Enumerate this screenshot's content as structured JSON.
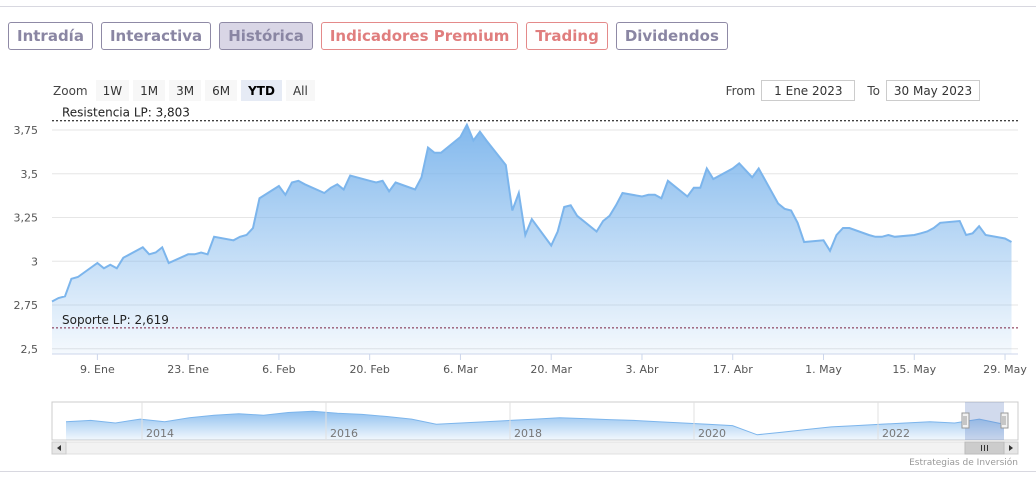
{
  "tabs": [
    {
      "label": "Intradía",
      "active": false,
      "premium": false
    },
    {
      "label": "Interactiva",
      "active": false,
      "premium": false
    },
    {
      "label": "Histórica",
      "active": true,
      "premium": false
    },
    {
      "label": "Indicadores Premium",
      "active": false,
      "premium": true
    },
    {
      "label": "Trading",
      "active": false,
      "premium": true
    },
    {
      "label": "Dividendos",
      "active": false,
      "premium": false
    }
  ],
  "zoom": {
    "label": "Zoom",
    "buttons": [
      "1W",
      "1M",
      "3M",
      "6M",
      "YTD",
      "All"
    ],
    "selected": "YTD"
  },
  "range": {
    "from_label": "From",
    "from_value": "1 Ene 2023",
    "to_label": "To",
    "to_value": "30 May 2023"
  },
  "chart_data": {
    "type": "area",
    "x_start": "2023-01-02",
    "x_end": "2023-05-31",
    "x_ticks": [
      {
        "date": "2023-01-09",
        "label": "9. Ene"
      },
      {
        "date": "2023-01-23",
        "label": "23. Ene"
      },
      {
        "date": "2023-02-06",
        "label": "6. Feb"
      },
      {
        "date": "2023-02-20",
        "label": "20. Feb"
      },
      {
        "date": "2023-03-06",
        "label": "6. Mar"
      },
      {
        "date": "2023-03-20",
        "label": "20. Mar"
      },
      {
        "date": "2023-04-03",
        "label": "3. Abr"
      },
      {
        "date": "2023-04-17",
        "label": "17. Abr"
      },
      {
        "date": "2023-05-01",
        "label": "1. May"
      },
      {
        "date": "2023-05-15",
        "label": "15. May"
      },
      {
        "date": "2023-05-29",
        "label": "29. May"
      }
    ],
    "y_ticks": [
      {
        "value": 2.5,
        "label": "2,5"
      },
      {
        "value": 2.75,
        "label": "2,75"
      },
      {
        "value": 3,
        "label": "3"
      },
      {
        "value": 3.25,
        "label": "3,25"
      },
      {
        "value": 3.5,
        "label": "3,5"
      },
      {
        "value": 3.75,
        "label": "3,75"
      }
    ],
    "ylim": [
      2.47,
      3.83
    ],
    "grid": true,
    "line_color": "#7cb5ec",
    "plot_lines": [
      {
        "value": 3.803,
        "label": "Resistencia LP: 3,803",
        "color": "#000000"
      },
      {
        "value": 2.619,
        "label": "Soporte LP: 2,619",
        "color": "#7a2040"
      }
    ],
    "series": [
      {
        "points": [
          [
            "2023-01-02",
            2.77
          ],
          [
            "2023-01-03",
            2.79
          ],
          [
            "2023-01-04",
            2.8
          ],
          [
            "2023-01-05",
            2.9
          ],
          [
            "2023-01-06",
            2.91
          ],
          [
            "2023-01-09",
            2.99
          ],
          [
            "2023-01-10",
            2.96
          ],
          [
            "2023-01-11",
            2.98
          ],
          [
            "2023-01-12",
            2.96
          ],
          [
            "2023-01-13",
            3.02
          ],
          [
            "2023-01-16",
            3.08
          ],
          [
            "2023-01-17",
            3.04
          ],
          [
            "2023-01-18",
            3.05
          ],
          [
            "2023-01-19",
            3.08
          ],
          [
            "2023-01-20",
            2.99
          ],
          [
            "2023-01-23",
            3.04
          ],
          [
            "2023-01-24",
            3.04
          ],
          [
            "2023-01-25",
            3.05
          ],
          [
            "2023-01-26",
            3.04
          ],
          [
            "2023-01-27",
            3.14
          ],
          [
            "2023-01-30",
            3.12
          ],
          [
            "2023-01-31",
            3.14
          ],
          [
            "2023-02-01",
            3.15
          ],
          [
            "2023-02-02",
            3.19
          ],
          [
            "2023-02-03",
            3.36
          ],
          [
            "2023-02-06",
            3.43
          ],
          [
            "2023-02-07",
            3.38
          ],
          [
            "2023-02-08",
            3.45
          ],
          [
            "2023-02-09",
            3.46
          ],
          [
            "2023-02-10",
            3.44
          ],
          [
            "2023-02-13",
            3.39
          ],
          [
            "2023-02-14",
            3.42
          ],
          [
            "2023-02-15",
            3.44
          ],
          [
            "2023-02-16",
            3.41
          ],
          [
            "2023-02-17",
            3.49
          ],
          [
            "2023-02-20",
            3.46
          ],
          [
            "2023-02-21",
            3.45
          ],
          [
            "2023-02-22",
            3.46
          ],
          [
            "2023-02-23",
            3.4
          ],
          [
            "2023-02-24",
            3.45
          ],
          [
            "2023-02-27",
            3.41
          ],
          [
            "2023-02-28",
            3.48
          ],
          [
            "2023-03-01",
            3.65
          ],
          [
            "2023-03-02",
            3.62
          ],
          [
            "2023-03-03",
            3.62
          ],
          [
            "2023-03-06",
            3.71
          ],
          [
            "2023-03-07",
            3.78
          ],
          [
            "2023-03-08",
            3.69
          ],
          [
            "2023-03-09",
            3.74
          ],
          [
            "2023-03-10",
            3.69
          ],
          [
            "2023-03-13",
            3.55
          ],
          [
            "2023-03-14",
            3.29
          ],
          [
            "2023-03-15",
            3.39
          ],
          [
            "2023-03-16",
            3.15
          ],
          [
            "2023-03-17",
            3.24
          ],
          [
            "2023-03-20",
            3.09
          ],
          [
            "2023-03-21",
            3.17
          ],
          [
            "2023-03-22",
            3.31
          ],
          [
            "2023-03-23",
            3.32
          ],
          [
            "2023-03-24",
            3.26
          ],
          [
            "2023-03-27",
            3.17
          ],
          [
            "2023-03-28",
            3.23
          ],
          [
            "2023-03-29",
            3.26
          ],
          [
            "2023-03-30",
            3.32
          ],
          [
            "2023-03-31",
            3.39
          ],
          [
            "2023-04-03",
            3.37
          ],
          [
            "2023-04-04",
            3.38
          ],
          [
            "2023-04-05",
            3.38
          ],
          [
            "2023-04-06",
            3.36
          ],
          [
            "2023-04-07",
            3.46
          ],
          [
            "2023-04-10",
            3.37
          ],
          [
            "2023-04-11",
            3.42
          ],
          [
            "2023-04-12",
            3.42
          ],
          [
            "2023-04-13",
            3.53
          ],
          [
            "2023-04-14",
            3.47
          ],
          [
            "2023-04-17",
            3.53
          ],
          [
            "2023-04-18",
            3.56
          ],
          [
            "2023-04-19",
            3.52
          ],
          [
            "2023-04-20",
            3.48
          ],
          [
            "2023-04-21",
            3.53
          ],
          [
            "2023-04-24",
            3.33
          ],
          [
            "2023-04-25",
            3.3
          ],
          [
            "2023-04-26",
            3.29
          ],
          [
            "2023-04-27",
            3.22
          ],
          [
            "2023-04-28",
            3.11
          ],
          [
            "2023-05-01",
            3.12
          ],
          [
            "2023-05-02",
            3.06
          ],
          [
            "2023-05-03",
            3.15
          ],
          [
            "2023-05-04",
            3.19
          ],
          [
            "2023-05-05",
            3.19
          ],
          [
            "2023-05-08",
            3.15
          ],
          [
            "2023-05-09",
            3.14
          ],
          [
            "2023-05-10",
            3.14
          ],
          [
            "2023-05-11",
            3.15
          ],
          [
            "2023-05-12",
            3.14
          ],
          [
            "2023-05-15",
            3.15
          ],
          [
            "2023-05-16",
            3.16
          ],
          [
            "2023-05-17",
            3.17
          ],
          [
            "2023-05-18",
            3.19
          ],
          [
            "2023-05-19",
            3.22
          ],
          [
            "2023-05-22",
            3.23
          ],
          [
            "2023-05-23",
            3.15
          ],
          [
            "2023-05-24",
            3.16
          ],
          [
            "2023-05-25",
            3.2
          ],
          [
            "2023-05-26",
            3.15
          ],
          [
            "2023-05-29",
            3.13
          ],
          [
            "2023-05-30",
            3.11
          ]
        ]
      }
    ]
  },
  "navigator": {
    "year_labels": [
      "2014",
      "2016",
      "2018",
      "2020",
      "2022"
    ],
    "values": [
      3.1,
      3.15,
      3.05,
      3.2,
      3.1,
      3.25,
      3.35,
      3.4,
      3.35,
      3.45,
      3.5,
      3.42,
      3.38,
      3.3,
      3.2,
      3.0,
      3.05,
      3.1,
      3.15,
      3.2,
      3.25,
      3.22,
      3.18,
      3.15,
      3.1,
      3.05,
      3.0,
      2.95,
      2.6,
      2.7,
      2.8,
      2.9,
      2.95,
      3.0,
      3.05,
      3.1,
      3.05,
      3.2,
      3.0
    ]
  },
  "credits": "Estrategias de Inversión"
}
